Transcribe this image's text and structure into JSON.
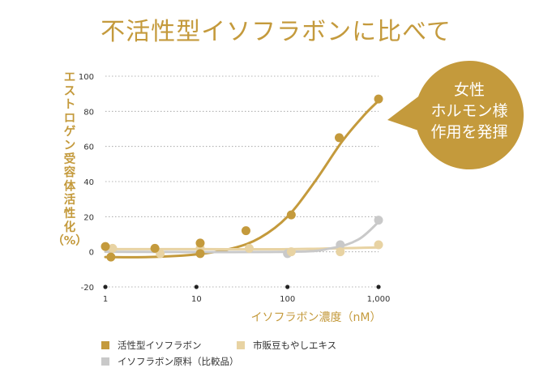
{
  "title": "不活性型イソフラボンに比べて",
  "callout": {
    "lines": [
      "女性",
      "ホルモン様",
      "作用を発揮"
    ],
    "color": "#c49a3c"
  },
  "chart_data": {
    "type": "scatter",
    "x_scale": "log",
    "ylabel_chars": [
      "エ",
      "ス",
      "ト",
      "ロ",
      "ゲ",
      "ン",
      "受",
      "容",
      "体",
      "活",
      "性",
      "化",
      "（%）"
    ],
    "xlabel": "イソフラボン濃度（nM）",
    "x_ticks": [
      1,
      10,
      100,
      1000
    ],
    "x_tick_labels": [
      "1",
      "10",
      "100",
      "1,000"
    ],
    "y_ticks": [
      -20,
      0,
      20,
      40,
      60,
      80,
      100
    ],
    "ylim": [
      -20,
      100
    ],
    "xlim": [
      1,
      1000
    ],
    "series": [
      {
        "name": "活性型イソフラボン",
        "color": "#c49a3c",
        "points": [
          [
            1,
            3
          ],
          [
            1.15,
            -3
          ],
          [
            3.5,
            2
          ],
          [
            11,
            5
          ],
          [
            11,
            -1
          ],
          [
            35,
            12
          ],
          [
            110,
            21
          ],
          [
            370,
            65
          ],
          [
            1000,
            87
          ]
        ],
        "curve": [
          [
            1,
            -3
          ],
          [
            3,
            -3
          ],
          [
            10,
            -1.5
          ],
          [
            25,
            2
          ],
          [
            50,
            8
          ],
          [
            100,
            20
          ],
          [
            200,
            40
          ],
          [
            400,
            63
          ],
          [
            700,
            78
          ],
          [
            1000,
            86
          ]
        ]
      },
      {
        "name": "市販豆もやしエキス",
        "color": "#e8d3a3",
        "points": [
          [
            1.2,
            2
          ],
          [
            4,
            -1
          ],
          [
            11,
            2
          ],
          [
            38,
            2
          ],
          [
            110,
            0
          ],
          [
            380,
            0
          ],
          [
            1000,
            4
          ]
        ],
        "curve": [
          [
            1,
            1.5
          ],
          [
            10,
            1.5
          ],
          [
            100,
            1.5
          ],
          [
            1000,
            2.5
          ]
        ]
      },
      {
        "name": "イソフラボン原料（比較品）",
        "color": "#c9c9c9",
        "points": [
          [
            100,
            -1
          ],
          [
            380,
            4
          ],
          [
            1000,
            18
          ]
        ],
        "curve": [
          [
            1,
            0
          ],
          [
            100,
            0
          ],
          [
            300,
            2
          ],
          [
            600,
            7
          ],
          [
            1000,
            17
          ]
        ]
      }
    ]
  }
}
